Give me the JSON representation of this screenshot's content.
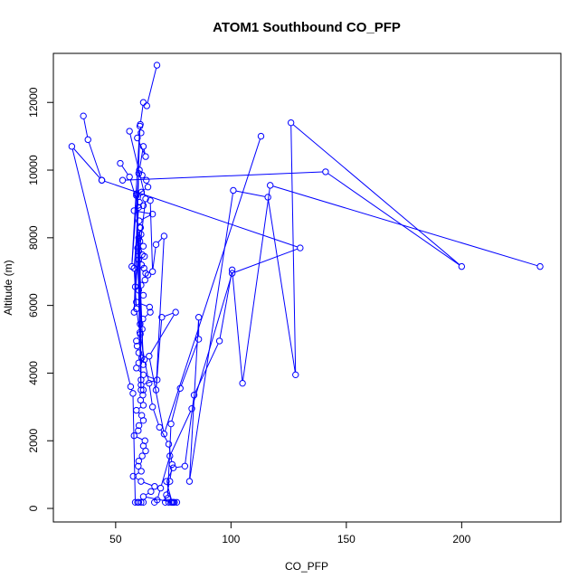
{
  "chart_data": {
    "type": "scatter",
    "title": "ATOM1 Southbound CO_PFP",
    "xlabel": "CO_PFP",
    "ylabel": "Altitude (m)",
    "xlim": [
      23,
      243
    ],
    "ylim": [
      -400,
      13450
    ],
    "xticks": [
      50,
      100,
      150,
      200
    ],
    "yticks": [
      0,
      2000,
      4000,
      6000,
      8000,
      10000,
      12000
    ],
    "grid": false,
    "legend": "none",
    "line_style": "connected points (type b)",
    "color": "#0000ff",
    "series": [
      {
        "x": [
          67.9,
          63.5,
          62.0,
          60.7,
          61.0,
          59.4,
          63.0,
          62.0,
          60.3,
          61.5,
          63.3,
          64.0,
          59.0,
          61.2,
          60.3,
          62.0,
          58.0,
          66.0,
          60.2,
          60.8,
          61.0,
          60.5,
          62.0,
          60.0,
          61.5,
          62.5,
          60.0,
          61.2,
          62.3,
          63.0,
          64.0,
          62.7,
          61.0,
          60.0,
          62.0,
          59.0,
          64.7,
          65.0,
          61.8,
          60.6,
          61.5,
          60.7,
          59.0,
          59.3,
          60.0,
          61.3,
          60.0,
          59.0,
          62.0,
          68.0,
          61.0,
          62.0,
          61.8,
          60.8,
          62.0,
          59.0,
          61.3,
          62.0,
          60.1,
          59.8,
          58.0,
          62.7,
          62.0,
          63.0,
          61.5,
          60.0,
          59.8,
          61.1,
          57.6,
          61.0,
          66.9,
          65.3,
          62.0,
          75.0,
          74.0,
          73.0
        ],
        "y": [
          13100,
          11900,
          12000,
          11350,
          11100,
          10950,
          10400,
          10700,
          10000,
          9850,
          9700,
          9500,
          9250,
          9350,
          9050,
          8950,
          8800,
          8700,
          8500,
          8300,
          8100,
          7900,
          7750,
          7600,
          7500,
          7450,
          7350,
          7200,
          7100,
          6950,
          6900,
          6750,
          6600,
          6450,
          6300,
          6100,
          5950,
          5800,
          5600,
          5450,
          5300,
          5150,
          4950,
          4800,
          4600,
          4450,
          4300,
          4150,
          3950,
          3800,
          3650,
          3500,
          3350,
          3200,
          3050,
          2900,
          2750,
          2600,
          2450,
          2300,
          2150,
          2000,
          1850,
          1700,
          1550,
          1400,
          1250,
          1100,
          950,
          800,
          650,
          500,
          350,
          180,
          180,
          180
        ]
      },
      {
        "x": [
          36.0,
          38.0,
          44.0,
          31.0,
          56.5,
          57.5,
          58.5,
          59.5,
          60.0,
          61.0,
          62.0
        ],
        "y": [
          11600,
          10900,
          9700,
          10700,
          3600,
          3400,
          180,
          180,
          180,
          180,
          180
        ]
      },
      {
        "x": [
          52.0,
          56.0,
          60.0,
          58.0,
          59.0,
          60.5,
          62.5,
          64.5,
          66.0,
          69.0,
          73.0,
          74.5,
          73.5,
          72.0,
          71.5,
          75.5,
          76.5,
          75.0
        ],
        "y": [
          10200,
          9800,
          8900,
          7100,
          5900,
          5200,
          4400,
          3700,
          3000,
          2400,
          1900,
          1300,
          800,
          400,
          180,
          180,
          180,
          180
        ]
      },
      {
        "x": [
          44.0,
          130.0,
          100.5,
          83.0,
          73.5,
          69.5,
          68.0,
          66.8
        ],
        "y": [
          9700,
          7700,
          6950,
          2950,
          1550,
          600,
          250,
          180
        ]
      },
      {
        "x": [
          53.0,
          141.0,
          200.0,
          126.0,
          128.0,
          116.0,
          101.0,
          82.0,
          86.0,
          86.0,
          78.0,
          74.0,
          72.5
        ],
        "y": [
          9700,
          9950,
          7150,
          11400,
          3950,
          9200,
          9400,
          800,
          5650,
          5000,
          3550,
          2500,
          300
        ]
      },
      {
        "x": [
          234.0,
          117.0,
          105.0,
          100.5,
          95.0,
          84.0,
          80.0,
          75.0,
          72.0,
          74.5
        ],
        "y": [
          7150,
          9550,
          3700,
          7050,
          4950,
          3350,
          1250,
          1200,
          800,
          180
        ]
      },
      {
        "x": [
          113.0,
          71.0,
          64.5,
          76.0,
          70.0,
          67.5,
          71.0,
          67.5,
          66.0,
          65.0
        ],
        "y": [
          11000,
          2200,
          4500,
          5800,
          5650,
          3500,
          8050,
          7800,
          7000,
          9100
        ]
      },
      {
        "x": [
          56.0,
          63.0,
          58.5,
          60.5,
          57.0,
          60.0,
          58.0,
          60.5,
          61.0,
          59.0,
          62.0,
          60.0,
          61.0,
          59.5
        ],
        "y": [
          11150,
          9150,
          6550,
          11300,
          7150,
          9900,
          5800,
          8300,
          3800,
          9300,
          4250,
          8000,
          3500,
          7700
        ]
      }
    ]
  }
}
